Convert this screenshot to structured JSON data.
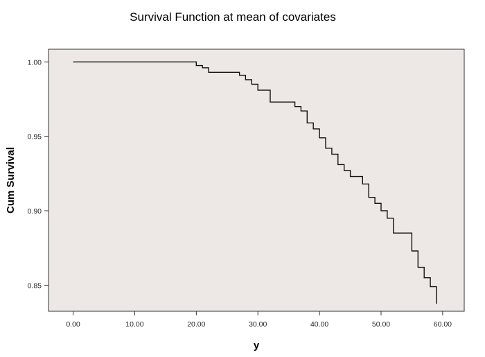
{
  "chart_data": {
    "type": "line",
    "step": true,
    "title": "Survival Function at mean of covariates",
    "xlabel": "y",
    "ylabel": "Cum Survival",
    "xlim": [
      -4.0,
      63.5
    ],
    "ylim": [
      0.8325,
      1.0085
    ],
    "xticks": [
      0,
      10,
      20,
      30,
      40,
      50,
      60
    ],
    "xtick_labels": [
      "0.00",
      "10.00",
      "20.00",
      "30.00",
      "40.00",
      "50.00",
      "60.00"
    ],
    "yticks": [
      1.0,
      0.95,
      0.9,
      0.85
    ],
    "ytick_labels": [
      "1.00",
      "0.95",
      "0.90",
      "0.85"
    ],
    "grid": false,
    "plot_background": "#ede8e6",
    "line_color": "#111111",
    "series": [
      {
        "x": [
          0,
          20,
          21,
          22,
          27,
          28,
          29,
          30,
          32,
          36,
          37,
          38,
          39,
          40,
          41,
          42,
          43,
          44,
          45,
          47,
          48,
          49,
          50,
          51,
          52,
          55,
          56,
          57,
          58,
          59
        ],
        "y": [
          1.0,
          0.9975,
          0.996,
          0.993,
          0.991,
          0.988,
          0.985,
          0.981,
          0.973,
          0.97,
          0.967,
          0.959,
          0.955,
          0.949,
          0.942,
          0.938,
          0.931,
          0.927,
          0.923,
          0.918,
          0.909,
          0.905,
          0.9,
          0.895,
          0.885,
          0.873,
          0.862,
          0.855,
          0.849,
          0.843
        ]
      }
    ]
  }
}
